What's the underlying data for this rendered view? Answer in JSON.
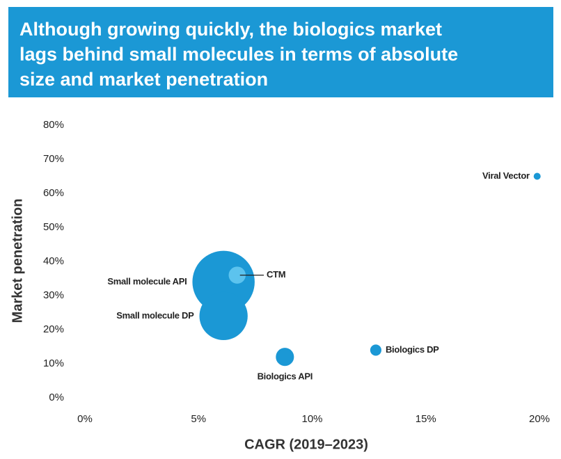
{
  "chart_data": {
    "type": "bubble",
    "title": "Although growing quickly, the biologics market lags behind small molecules in terms of absolute size and market penetration",
    "x_label": "CAGR (2019–2023)",
    "y_label": "Market penetration",
    "xlim": [
      0,
      20
    ],
    "ylim": [
      0,
      80
    ],
    "xticks": [
      {
        "value": 0,
        "label": "0%"
      },
      {
        "value": 5,
        "label": "5%"
      },
      {
        "value": 10,
        "label": "10%"
      },
      {
        "value": 15,
        "label": "15%"
      },
      {
        "value": 20,
        "label": "20%"
      }
    ],
    "yticks": [
      {
        "value": 0,
        "label": "0%"
      },
      {
        "value": 10,
        "label": "10%"
      },
      {
        "value": 20,
        "label": "20%"
      },
      {
        "value": 30,
        "label": "30%"
      },
      {
        "value": 40,
        "label": "40%"
      },
      {
        "value": 50,
        "label": "50%"
      },
      {
        "value": 60,
        "label": "60%"
      },
      {
        "value": 70,
        "label": "70%"
      },
      {
        "value": 80,
        "label": "80%"
      }
    ],
    "points": [
      {
        "label": "Small molecule API",
        "x": 6.1,
        "y": 34,
        "size": 2000,
        "color": "#1b98d5"
      },
      {
        "label": "Small molecule DP",
        "x": 6.1,
        "y": 24,
        "size": 1200,
        "color": "#1b98d5"
      },
      {
        "label": "CTM",
        "x": 6.7,
        "y": 36,
        "size": 150,
        "color": "#5cc3ee"
      },
      {
        "label": "Biologics API",
        "x": 8.8,
        "y": 12,
        "size": 170,
        "color": "#1b98d5"
      },
      {
        "label": "Biologics DP",
        "x": 12.8,
        "y": 14,
        "size": 65,
        "color": "#1b98d5"
      },
      {
        "label": "Viral Vector",
        "x": 19.9,
        "y": 65,
        "size": 25,
        "color": "#1b98d5"
      }
    ]
  }
}
